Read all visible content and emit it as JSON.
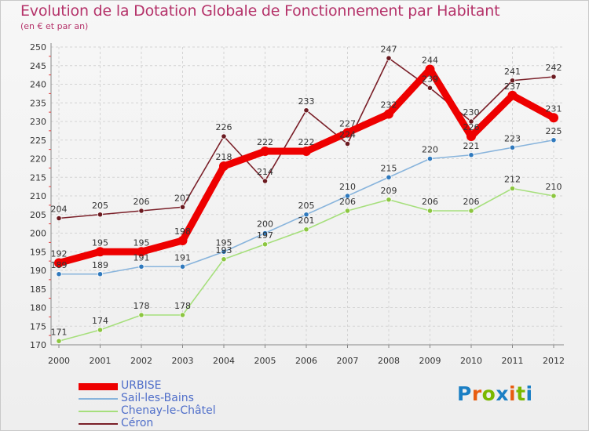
{
  "title": "Evolution de la Dotation Globale de Fonctionnement par Habitant",
  "subtitle": "(en € et par an)",
  "logo": {
    "text": "Proxiti",
    "letter_colors": [
      "#1b7fc4",
      "#e85c10",
      "#7ab800",
      "#1b7fc4",
      "#e85c10",
      "#7ab800",
      "#1b7fc4"
    ]
  },
  "chart_data": {
    "type": "line",
    "title": "Evolution de la Dotation Globale de Fonctionnement par Habitant",
    "subtitle": "(en € et par an)",
    "x": [
      2000,
      2001,
      2002,
      2003,
      2004,
      2005,
      2006,
      2007,
      2008,
      2009,
      2010,
      2011,
      2012
    ],
    "ylim": [
      170,
      250
    ],
    "yticks": [
      170,
      175,
      180,
      185,
      190,
      195,
      200,
      205,
      210,
      215,
      220,
      225,
      230,
      235,
      240,
      245,
      250
    ],
    "grid": true,
    "legend_position": "bottom-left",
    "series": [
      {
        "name": "Céron",
        "color": "#7a1f28",
        "marker": "#6b1a20",
        "emphasis": false,
        "values": [
          204,
          205,
          206,
          207,
          226,
          214,
          233,
          224,
          247,
          239,
          230,
          241,
          242
        ]
      },
      {
        "name": "Chenay-le-Châtel",
        "color": "#a6df7c",
        "marker": "#8cc640",
        "emphasis": false,
        "values": [
          171,
          174,
          178,
          178,
          193,
          197,
          201,
          206,
          209,
          206,
          206,
          212,
          210
        ]
      },
      {
        "name": "Sail-les-Bains",
        "color": "#88b4dc",
        "marker": "#2f79bd",
        "emphasis": false,
        "values": [
          189,
          189,
          191,
          191,
          195,
          200,
          205,
          210,
          215,
          220,
          221,
          223,
          225
        ]
      },
      {
        "name": "URBISE",
        "color": "#ee0000",
        "marker": "#ee0000",
        "emphasis": true,
        "values": [
          192,
          195,
          195,
          198,
          218,
          222,
          222,
          227,
          232,
          244,
          226,
          237,
          231
        ]
      }
    ],
    "legend": [
      "URBISE",
      "Sail-les-Bains",
      "Chenay-le-Châtel",
      "Céron"
    ]
  }
}
